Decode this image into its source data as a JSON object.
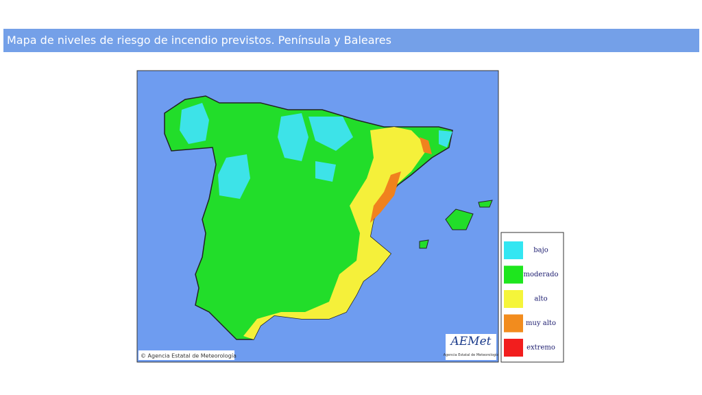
{
  "header": {
    "title": "Mapa de niveles de riesgo de incendio previstos. Península y Baleares"
  },
  "map": {
    "copyright": "© Agencia Estatal de Meteorología",
    "logo": {
      "name": "AEMet",
      "subtitle": "Agencia Estatal de Meteorología"
    },
    "legend": [
      {
        "label": "bajo",
        "color": "#33e6f2"
      },
      {
        "label": "moderado",
        "color": "#1ee61e"
      },
      {
        "label": "alto",
        "color": "#f5f53a"
      },
      {
        "label": "muy alto",
        "color": "#f28c1e"
      },
      {
        "label": "extremo",
        "color": "#f21e1e"
      }
    ]
  }
}
